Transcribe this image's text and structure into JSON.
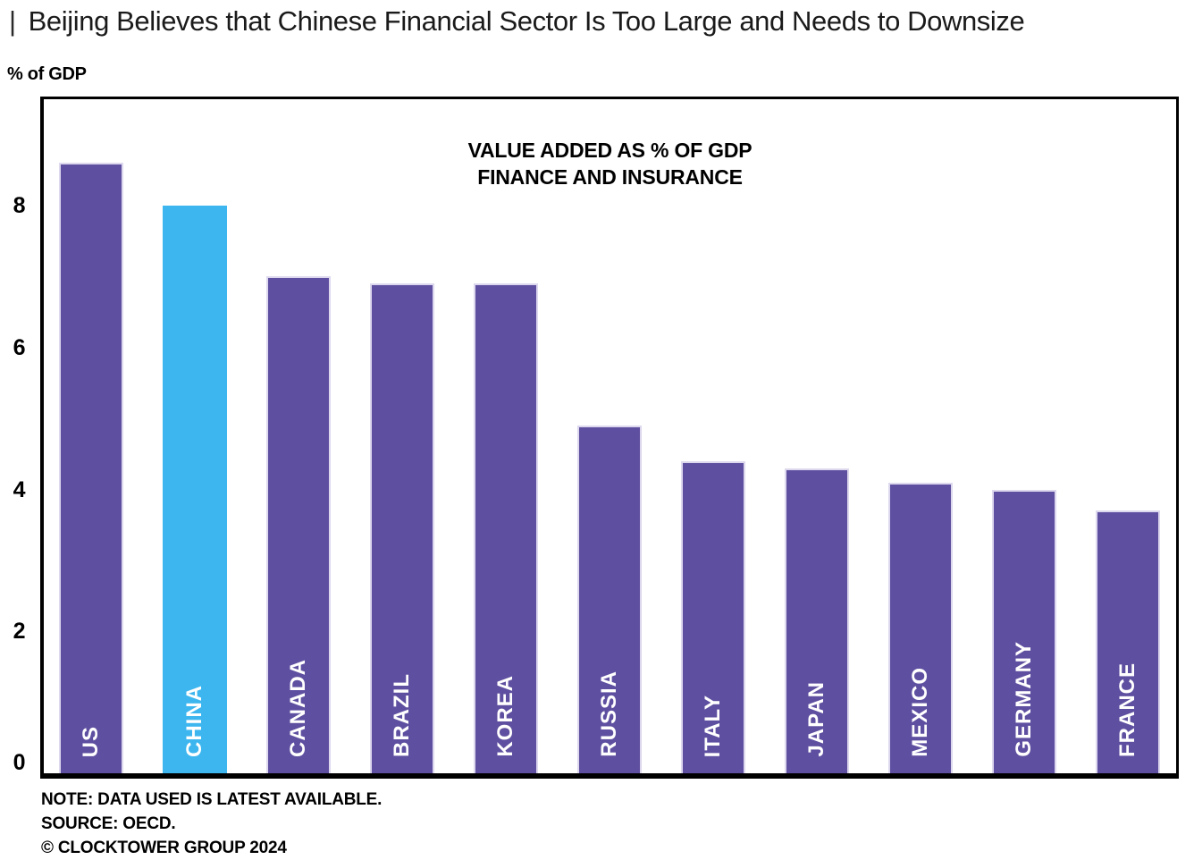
{
  "header": {
    "prefix": "|",
    "title": "Beijing Believes that Chinese Financial Sector Is Too Large and Needs to Downsize"
  },
  "chart_data": {
    "type": "bar",
    "title": "VALUE ADDED AS % OF GDP FINANCE AND INSURANCE",
    "title_lines": [
      "VALUE ADDED AS % OF GDP",
      "FINANCE AND INSURANCE"
    ],
    "unit_label": "% of GDP",
    "categories": [
      "US",
      "CHINA",
      "CANADA",
      "BRAZIL",
      "KOREA",
      "RUSSIA",
      "ITALY",
      "JAPAN",
      "MEXICO",
      "GERMANY",
      "FRANCE"
    ],
    "values": [
      8.6,
      8.0,
      7.0,
      6.9,
      6.9,
      4.9,
      4.4,
      4.3,
      4.1,
      4.0,
      3.7
    ],
    "ylim": [
      0,
      9.5
    ],
    "yticks": [
      0,
      2,
      4,
      6,
      8
    ],
    "grid": false,
    "legend": "none",
    "bar_color": "#5F4FA0",
    "bar_border_color": "#DDD8EE",
    "highlight_category": "CHINA",
    "highlight_index": 1,
    "highlight_color": "#3DB6EF",
    "bar_label_color": "#FFFFFF"
  },
  "footer": {
    "note": "NOTE: DATA USED IS LATEST AVAILABLE.",
    "source": "SOURCE: OECD.",
    "copyright": "© CLOCKTOWER GROUP 2024"
  }
}
